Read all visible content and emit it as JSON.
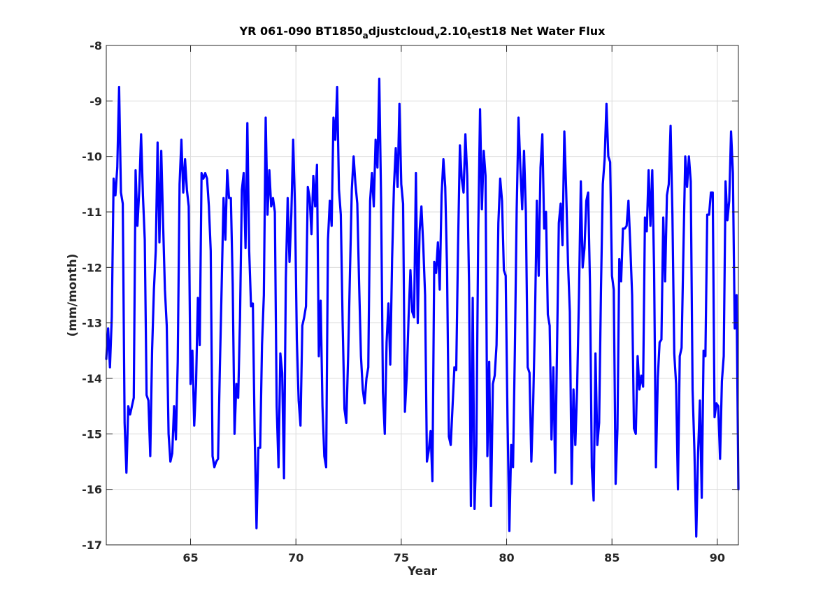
{
  "chart_data": {
    "type": "line",
    "title": {
      "parts": [
        {
          "text": "YR 061-090 BT1850",
          "sub": false
        },
        {
          "text": "a",
          "sub": true
        },
        {
          "text": "djustcloud",
          "sub": false
        },
        {
          "text": "v",
          "sub": true
        },
        {
          "text": "2.10",
          "sub": false
        },
        {
          "text": "t",
          "sub": true
        },
        {
          "text": "est18 Net Water Flux",
          "sub": false
        }
      ]
    },
    "xlabel": "Year",
    "ylabel": "(mm/month)",
    "xlim": [
      61,
      91
    ],
    "ylim": [
      -17,
      -8
    ],
    "xticks": [
      65,
      70,
      75,
      80,
      85,
      90
    ],
    "yticks": [
      -17,
      -16,
      -15,
      -14,
      -13,
      -12,
      -11,
      -10,
      -9,
      -8
    ],
    "grid": true,
    "box": true,
    "line_color": "#0000ff",
    "series": [
      {
        "values": [
          -13.65,
          -13.1,
          -13.8,
          -12.9,
          -10.4,
          -10.7,
          -10.2,
          -8.75,
          -10.65,
          -10.85,
          -14.8,
          -15.7,
          -14.5,
          -14.65,
          -14.5,
          -14.35,
          -10.25,
          -11.25,
          -10.6,
          -9.6,
          -10.7,
          -11.5,
          -14.3,
          -14.4,
          -15.4,
          -13.5,
          -12.4,
          -11.7,
          -9.75,
          -11.55,
          -9.9,
          -11.2,
          -12.4,
          -13.05,
          -15.0,
          -15.5,
          -15.35,
          -14.5,
          -15.1,
          -13.7,
          -10.5,
          -9.7,
          -10.65,
          -10.05,
          -10.6,
          -10.9,
          -14.1,
          -13.5,
          -14.85,
          -14.1,
          -12.55,
          -13.4,
          -10.3,
          -10.4,
          -10.3,
          -10.4,
          -10.9,
          -11.7,
          -15.4,
          -15.6,
          -15.5,
          -15.45,
          -13.8,
          -12.3,
          -10.75,
          -11.5,
          -10.25,
          -10.75,
          -10.75,
          -12.3,
          -15.0,
          -14.1,
          -14.35,
          -12.9,
          -10.6,
          -10.3,
          -11.65,
          -9.4,
          -11.7,
          -12.7,
          -12.65,
          -15.0,
          -16.7,
          -15.25,
          -15.25,
          -13.4,
          -12.5,
          -9.3,
          -11.05,
          -10.25,
          -10.9,
          -10.75,
          -11.0,
          -14.5,
          -15.6,
          -13.55,
          -13.9,
          -15.8,
          -12.2,
          -10.75,
          -11.9,
          -11.05,
          -9.7,
          -10.9,
          -13.3,
          -14.4,
          -14.85,
          -13.05,
          -12.9,
          -12.7,
          -10.55,
          -10.75,
          -11.4,
          -10.35,
          -10.9,
          -10.15,
          -13.6,
          -12.6,
          -14.5,
          -15.4,
          -15.6,
          -11.5,
          -10.8,
          -11.25,
          -9.3,
          -9.7,
          -8.75,
          -10.6,
          -11.05,
          -13.0,
          -14.55,
          -14.8,
          -13.6,
          -12.1,
          -10.6,
          -10.0,
          -10.5,
          -10.85,
          -12.3,
          -13.6,
          -14.2,
          -14.45,
          -14.0,
          -13.8,
          -10.8,
          -10.3,
          -10.9,
          -9.7,
          -10.2,
          -8.6,
          -10.8,
          -14.25,
          -15.0,
          -13.35,
          -12.65,
          -13.75,
          -11.85,
          -10.55,
          -9.85,
          -10.55,
          -9.05,
          -10.5,
          -10.85,
          -14.6,
          -13.95,
          -12.9,
          -12.05,
          -12.8,
          -12.9,
          -10.3,
          -13.0,
          -11.35,
          -10.9,
          -11.6,
          -12.5,
          -15.5,
          -15.3,
          -14.95,
          -15.85,
          -11.9,
          -12.1,
          -11.55,
          -12.4,
          -10.7,
          -10.05,
          -10.55,
          -12.05,
          -15.05,
          -15.2,
          -14.5,
          -13.8,
          -13.85,
          -11.6,
          -9.8,
          -10.4,
          -10.65,
          -9.6,
          -10.35,
          -12.3,
          -16.3,
          -12.55,
          -16.35,
          -15.2,
          -11.4,
          -9.15,
          -10.95,
          -9.9,
          -10.35,
          -15.4,
          -13.7,
          -16.3,
          -14.1,
          -13.95,
          -13.4,
          -11.2,
          -10.4,
          -10.8,
          -12.05,
          -12.15,
          -14.75,
          -16.75,
          -15.2,
          -15.6,
          -13.5,
          -10.95,
          -9.3,
          -10.2,
          -10.95,
          -9.9,
          -11.0,
          -13.8,
          -13.9,
          -15.5,
          -14.45,
          -12.9,
          -10.8,
          -12.15,
          -10.2,
          -9.6,
          -11.3,
          -11.0,
          -12.85,
          -13.05,
          -15.1,
          -13.8,
          -15.7,
          -13.5,
          -11.2,
          -10.85,
          -11.6,
          -9.55,
          -10.6,
          -11.9,
          -12.8,
          -15.9,
          -14.2,
          -15.2,
          -14.15,
          -12.5,
          -10.45,
          -12.0,
          -11.65,
          -10.8,
          -10.65,
          -12.3,
          -15.6,
          -16.2,
          -13.55,
          -15.2,
          -14.8,
          -12.4,
          -10.5,
          -10.05,
          -9.05,
          -10.0,
          -10.1,
          -12.15,
          -12.4,
          -15.9,
          -14.9,
          -11.85,
          -12.25,
          -11.3,
          -11.3,
          -11.25,
          -10.8,
          -11.6,
          -12.5,
          -14.9,
          -15.0,
          -13.6,
          -14.2,
          -13.95,
          -14.15,
          -11.1,
          -11.35,
          -10.25,
          -11.25,
          -10.25,
          -12.05,
          -15.6,
          -14.0,
          -13.35,
          -13.3,
          -11.1,
          -12.25,
          -10.7,
          -10.5,
          -9.45,
          -11.05,
          -13.55,
          -14.1,
          -16.0,
          -13.6,
          -13.45,
          -11.7,
          -10.0,
          -10.55,
          -10.0,
          -10.45,
          -14.2,
          -15.3,
          -16.85,
          -15.35,
          -14.4,
          -16.15,
          -13.5,
          -13.6,
          -11.05,
          -11.05,
          -10.65,
          -10.65,
          -14.7,
          -14.45,
          -14.5,
          -15.45,
          -14.05,
          -13.6,
          -10.45,
          -11.15,
          -10.8,
          -9.55,
          -10.3,
          -13.1,
          -12.5,
          -16.0
        ]
      }
    ]
  }
}
